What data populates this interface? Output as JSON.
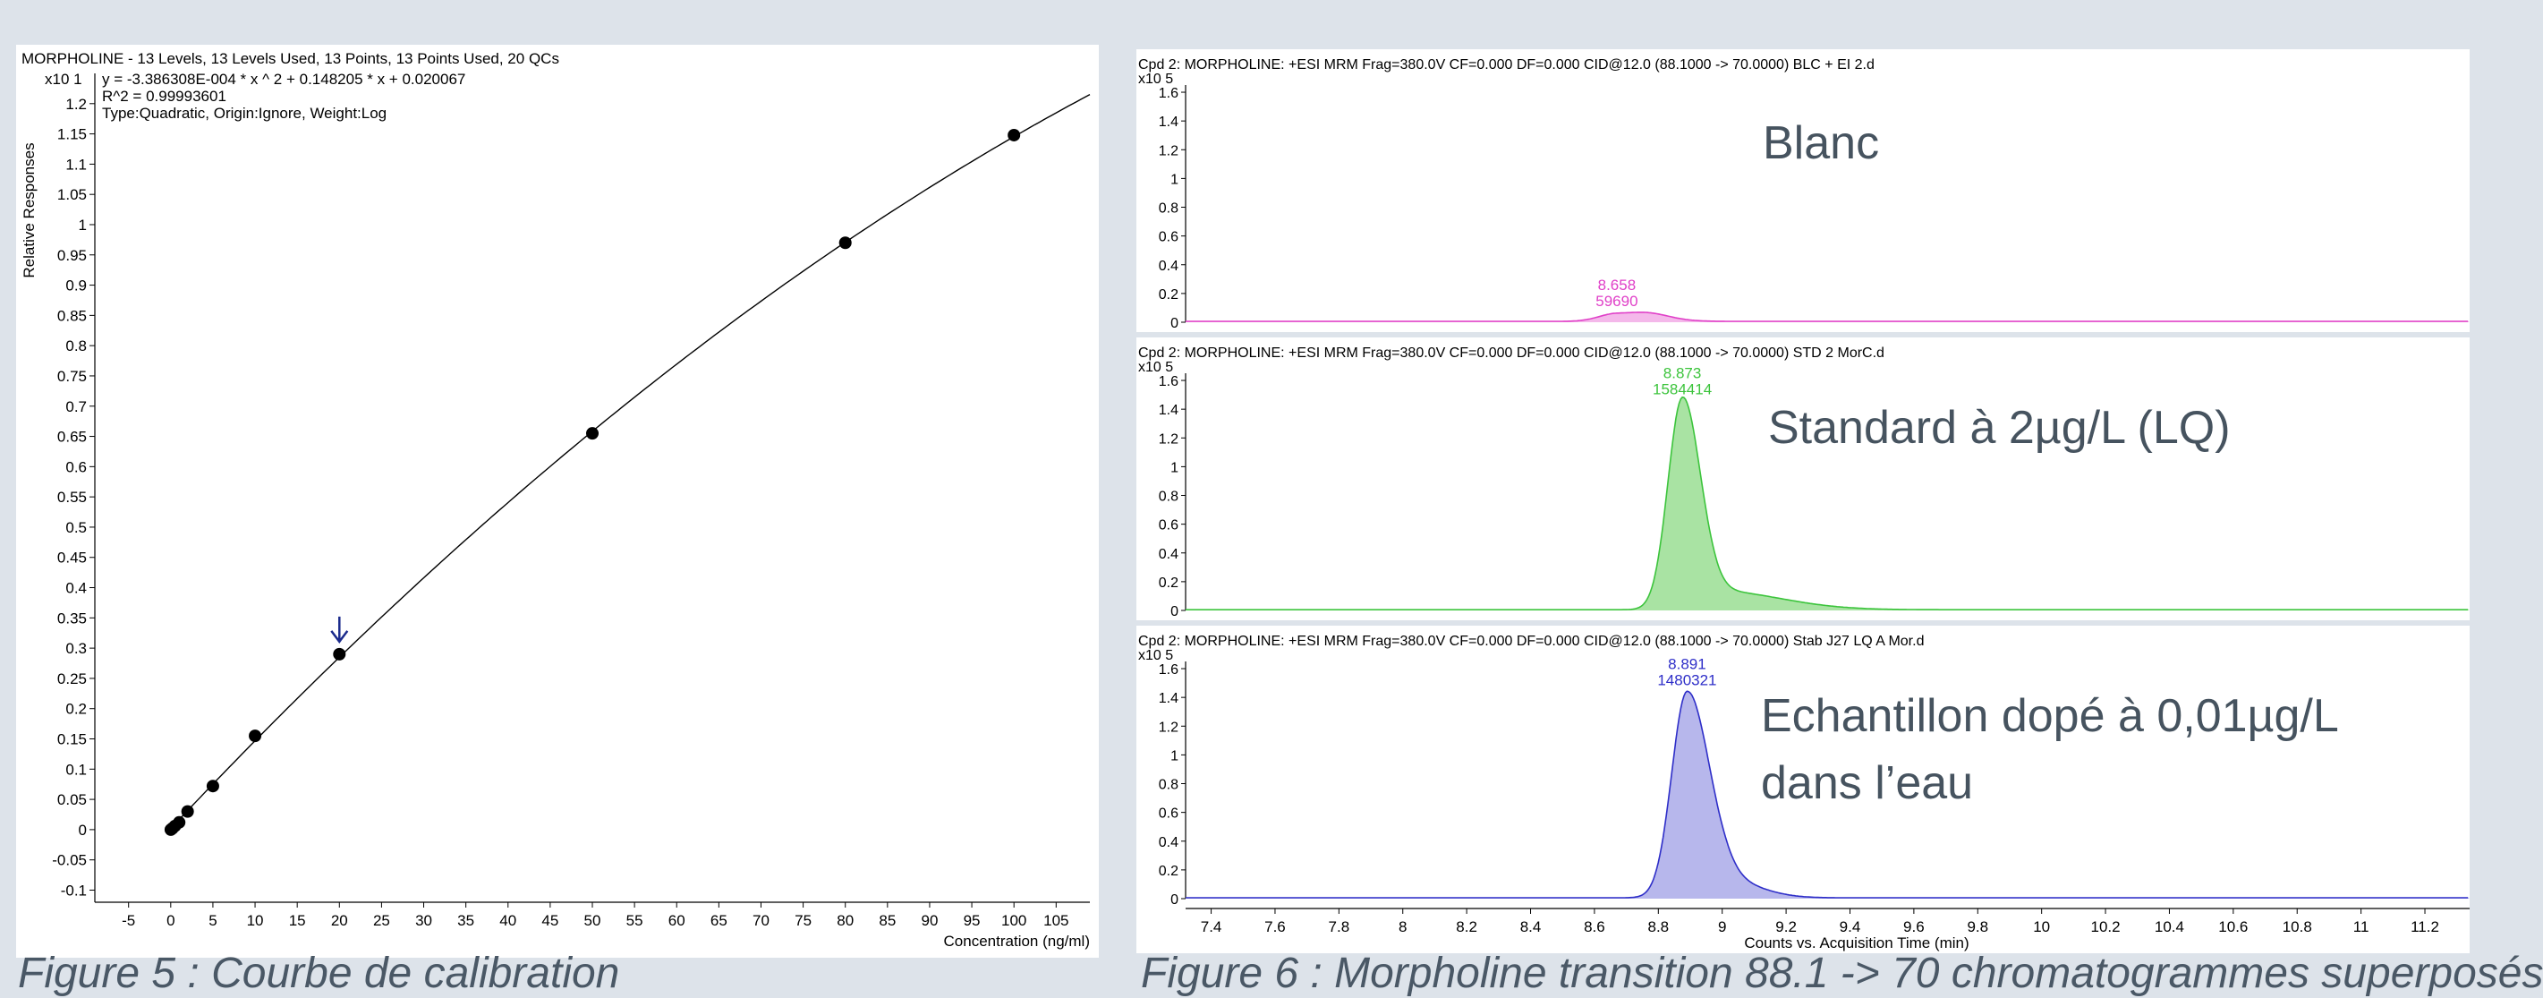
{
  "calibration": {
    "title": "MORPHOLINE - 13 Levels, 13 Levels Used, 13 Points, 13 Points Used, 20 QCs",
    "y_multiplier": "x10 1",
    "equation": "y = -3.386308E-004 * x ^ 2  + 0.148205 * x  + 0.020067",
    "r2": "R^2 = 0.99993601",
    "type_line": "Type:Quadratic, Origin:Ignore, Weight:Log",
    "ylabel": "Relative Responses",
    "xlabel": "Concentration (ng/ml)",
    "caption": "Figure 5 : Courbe de calibration",
    "arrow_color": "#1a2a8c"
  },
  "chart_data": [
    {
      "type": "scatter",
      "name_key": "calibration-curve",
      "x_ticks": [
        -5,
        0,
        5,
        10,
        15,
        20,
        25,
        30,
        35,
        40,
        45,
        50,
        55,
        60,
        65,
        70,
        75,
        80,
        85,
        90,
        95,
        100,
        105
      ],
      "y_ticks": [
        "-0.1",
        "-0.05",
        "0",
        "0.05",
        "0.1",
        "0.15",
        "0.2",
        "0.25",
        "0.3",
        "0.35",
        "0.4",
        "0.45",
        "0.5",
        "0.55",
        "0.6",
        "0.65",
        "0.7",
        "0.75",
        "0.8",
        "0.85",
        "0.9",
        "0.95",
        "1",
        "1.05",
        "1.1",
        "1.15",
        "1.2"
      ],
      "xlim": [
        -9,
        109
      ],
      "ylim": [
        -0.12,
        1.25
      ],
      "points": [
        {
          "x": 0.01,
          "y": 0.0
        },
        {
          "x": 0.2,
          "y": 0.002
        },
        {
          "x": 0.5,
          "y": 0.006
        },
        {
          "x": 1,
          "y": 0.012
        },
        {
          "x": 2,
          "y": 0.03
        },
        {
          "x": 5,
          "y": 0.072
        },
        {
          "x": 10,
          "y": 0.155
        },
        {
          "x": 20,
          "y": 0.29
        },
        {
          "x": 50,
          "y": 0.655
        },
        {
          "x": 80,
          "y": 0.97
        },
        {
          "x": 100,
          "y": 1.148
        }
      ],
      "curve": {
        "a": -0.0003386308,
        "b": 0.148205,
        "c": 0.020067,
        "x_from": 0,
        "x_to": 109,
        "scale": 0.1
      },
      "arrow_at": {
        "x": 20,
        "y": 0.29
      }
    },
    {
      "type": "area",
      "name_key": "chromatograms",
      "xlabel": "Counts vs. Acquisition Time (min)",
      "x_ticks": [
        "7.4",
        "7.6",
        "7.8",
        "8",
        "8.2",
        "8.4",
        "8.6",
        "8.8",
        "9",
        "9.2",
        "9.4",
        "9.6",
        "9.8",
        "10",
        "10.2",
        "10.4",
        "10.6",
        "10.8",
        "11",
        "11.2"
      ],
      "xlim": [
        7.32,
        11.34
      ],
      "y_ticks": [
        "0",
        "0.2",
        "0.4",
        "0.6",
        "0.8",
        "1",
        "1.2",
        "1.4",
        "1.6"
      ],
      "ylim": [
        0,
        1.65
      ],
      "y_multiplier": "x10 5",
      "traces": [
        {
          "header": "Cpd 2: MORPHOLINE: +ESI MRM Frag=380.0V CF=0.000 DF=0.000 CID@12.0 (88.1000 -> 70.0000) BLC +  EI 2.d",
          "label": "Blanc",
          "peak_rt": "8.658",
          "peak_area": "59690",
          "color": "#e040c8",
          "fill": "#f4b8ea",
          "peak": {
            "center": 8.67,
            "height": 0.055,
            "w_left": 0.055,
            "w_right": 0.11
          },
          "extra": [
            {
              "center": 8.78,
              "height": 0.025,
              "w_left": 0.05,
              "w_right": 0.06
            }
          ],
          "baseline": 0.006
        },
        {
          "header": "Cpd 2: MORPHOLINE: +ESI MRM Frag=380.0V CF=0.000 DF=0.000 CID@12.0 (88.1000 -> 70.0000) STD 2 MorC.d",
          "label": "Standard à 2µg/L (LQ)",
          "peak_rt": "8.873",
          "peak_area": "1584414",
          "color": "#3cc43c",
          "fill": "#a9e3a3",
          "peak": {
            "center": 8.875,
            "height": 1.45,
            "w_left": 0.045,
            "w_right": 0.055
          },
          "extra": [
            {
              "center": 8.98,
              "height": 0.13,
              "w_left": 0.06,
              "w_right": 0.2
            }
          ],
          "baseline": 0.005
        },
        {
          "header": "Cpd 2: MORPHOLINE: +ESI MRM Frag=380.0V CF=0.000 DF=0.000 CID@12.0 (88.1000 -> 70.0000) Stab J27 LQ A Mor.d",
          "label": "Echantillon dopé à 0,01µg/L",
          "label2": "dans l’eau",
          "peak_rt": "8.891",
          "peak_area": "1480321",
          "color": "#2e2ec8",
          "fill": "#b7b7ec",
          "peak": {
            "center": 8.89,
            "height": 1.43,
            "w_left": 0.048,
            "w_right": 0.07
          },
          "extra": [
            {
              "center": 9.03,
              "height": 0.1,
              "w_left": 0.06,
              "w_right": 0.1
            }
          ],
          "baseline": 0.006
        }
      ]
    }
  ],
  "chromatograms": {
    "caption": "Figure 6 : Morpholine transition 88.1 -> 70 chromatogrammes superposés"
  }
}
